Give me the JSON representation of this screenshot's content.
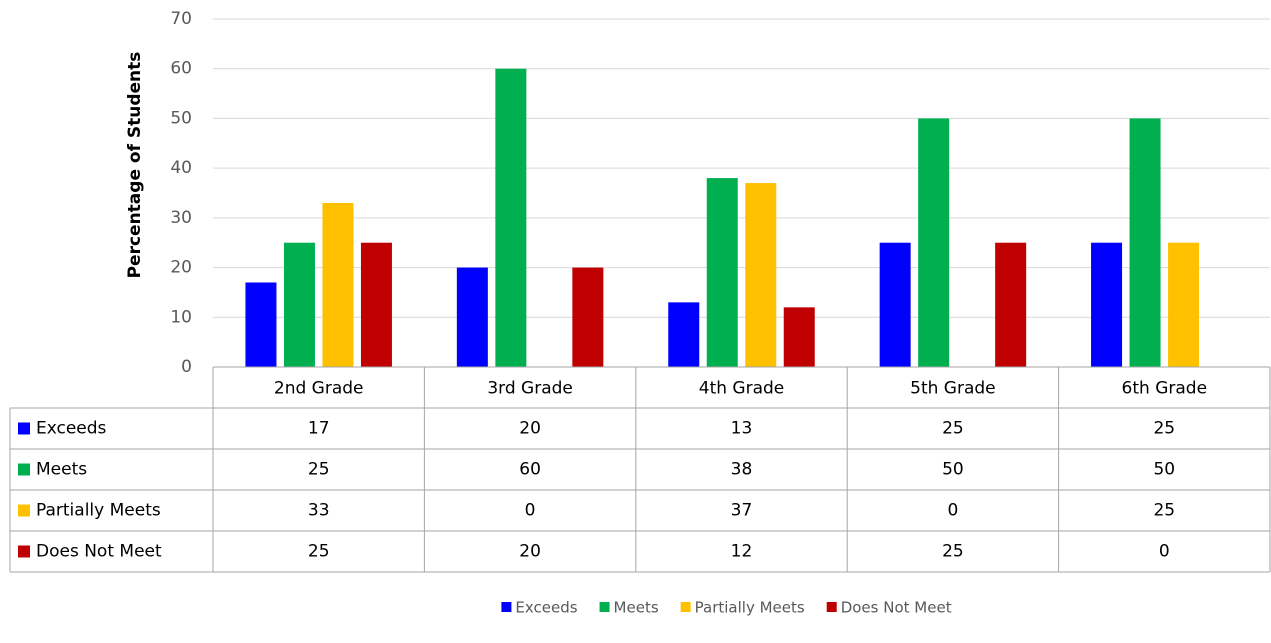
{
  "chart_data": {
    "type": "bar",
    "y_label": "Percentage of Students",
    "categories": [
      "2nd Grade",
      "3rd Grade",
      "4th Grade",
      "5th Grade",
      "6th Grade"
    ],
    "series": [
      {
        "name": "Exceeds",
        "color": "#0000ff",
        "values": [
          17,
          20,
          13,
          25,
          25
        ]
      },
      {
        "name": "Meets",
        "color": "#00b050",
        "values": [
          25,
          60,
          38,
          50,
          50
        ]
      },
      {
        "name": "Partially Meets",
        "color": "#ffc000",
        "values": [
          33,
          0,
          37,
          0,
          25
        ]
      },
      {
        "name": "Does Not Meet",
        "color": "#c00000",
        "values": [
          25,
          20,
          12,
          25,
          0
        ]
      }
    ],
    "ylim": [
      0,
      70
    ],
    "yticks": [
      0,
      10,
      20,
      30,
      40,
      50,
      60,
      70
    ],
    "grid": true
  }
}
